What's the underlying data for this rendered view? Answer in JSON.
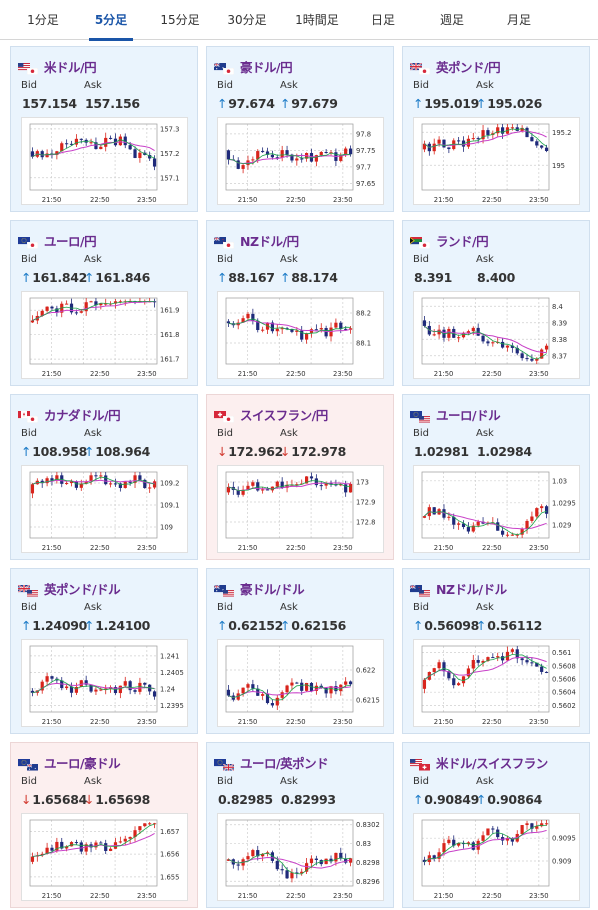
{
  "tabs": [
    {
      "label": "1分足",
      "active": false
    },
    {
      "label": "5分足",
      "active": true
    },
    {
      "label": "15分足",
      "active": false
    },
    {
      "label": "30分足",
      "active": false
    },
    {
      "label": "1時間足",
      "active": false
    },
    {
      "label": "日足",
      "active": false
    },
    {
      "label": "週足",
      "active": false
    },
    {
      "label": "月足",
      "active": false
    }
  ],
  "labels": {
    "bid": "Bid",
    "ask": "Ask"
  },
  "colors": {
    "up_bg": "#eaf4fd",
    "down_bg": "#fcefef",
    "name": "#6a2c8e",
    "up_arrow": "#1c7bc7",
    "down_arrow": "#d2392f",
    "candle_up": "#d8241c",
    "candle_down": "#1f2a7a",
    "ma_pink": "#c840c8",
    "ma_green": "#1aa34a"
  },
  "cards": [
    {
      "pair": "米ドル/円",
      "flag": "us-jp-flag-icon",
      "direction": "up",
      "bid": "157.154",
      "ask": "157.156",
      "arrow_bid": "",
      "arrow_ask": "",
      "chart_data": {
        "type": "line",
        "x_labels": [
          "21:50",
          "22:50",
          "23:50"
        ],
        "y_ticks": [
          "157.3",
          "157.2",
          "157.1"
        ],
        "ylim": [
          157.05,
          157.32
        ]
      }
    },
    {
      "pair": "豪ドル/円",
      "flag": "au-jp-flag-icon",
      "direction": "up",
      "bid": "97.674",
      "ask": "97.679",
      "arrow_bid": "↑",
      "arrow_ask": "↑",
      "chart_data": {
        "type": "line",
        "x_labels": [
          "21:50",
          "22:50",
          "23:50"
        ],
        "y_ticks": [
          "97.8",
          "97.75",
          "97.7",
          "97.65"
        ],
        "ylim": [
          97.63,
          97.83
        ]
      }
    },
    {
      "pair": "英ポンド/円",
      "flag": "gb-jp-flag-icon",
      "direction": "up",
      "bid": "195.019",
      "ask": "195.026",
      "arrow_bid": "↑",
      "arrow_ask": "↑",
      "chart_data": {
        "type": "line",
        "x_labels": [
          "21:50",
          "22:50",
          "23:50"
        ],
        "y_ticks": [
          "195.2",
          "195"
        ],
        "ylim": [
          194.85,
          195.25
        ]
      }
    },
    {
      "pair": "ユーロ/円",
      "flag": "eu-jp-flag-icon",
      "direction": "up",
      "bid": "161.842",
      "ask": "161.846",
      "arrow_bid": "↑",
      "arrow_ask": "↑",
      "chart_data": {
        "type": "line",
        "x_labels": [
          "21:50",
          "22:50",
          "23:50"
        ],
        "y_ticks": [
          "161.9",
          "161.8",
          "161.7"
        ],
        "ylim": [
          161.68,
          161.95
        ]
      }
    },
    {
      "pair": "NZドル/円",
      "flag": "nz-jp-flag-icon",
      "direction": "up",
      "bid": "88.167",
      "ask": "88.174",
      "arrow_bid": "↑",
      "arrow_ask": "↑",
      "chart_data": {
        "type": "line",
        "x_labels": [
          "21:50",
          "22:50",
          "23:50"
        ],
        "y_ticks": [
          "88.2",
          "88.1"
        ],
        "ylim": [
          88.03,
          88.25
        ]
      }
    },
    {
      "pair": "ランド/円",
      "flag": "za-jp-flag-icon",
      "direction": "up",
      "bid": "8.391",
      "ask": "8.400",
      "arrow_bid": "",
      "arrow_ask": "",
      "chart_data": {
        "type": "line",
        "x_labels": [
          "21:50",
          "22:50",
          "23:50"
        ],
        "y_ticks": [
          "8.4",
          "8.39",
          "8.38",
          "8.37"
        ],
        "ylim": [
          8.365,
          8.405
        ]
      }
    },
    {
      "pair": "カナダドル/円",
      "flag": "ca-jp-flag-icon",
      "direction": "up",
      "bid": "108.958",
      "ask": "108.964",
      "arrow_bid": "↑",
      "arrow_ask": "↑",
      "chart_data": {
        "type": "line",
        "x_labels": [
          "21:50",
          "22:50",
          "23:50"
        ],
        "y_ticks": [
          "109.2",
          "109.1",
          "109"
        ],
        "ylim": [
          108.95,
          109.25
        ]
      }
    },
    {
      "pair": "スイスフラン/円",
      "flag": "ch-jp-flag-icon",
      "direction": "down",
      "bid": "172.962",
      "ask": "172.978",
      "arrow_bid": "↓",
      "arrow_ask": "↓",
      "chart_data": {
        "type": "line",
        "x_labels": [
          "21:50",
          "22:50",
          "23:50"
        ],
        "y_ticks": [
          "173",
          "172.9",
          "172.8"
        ],
        "ylim": [
          172.72,
          173.05
        ]
      }
    },
    {
      "pair": "ユーロ/ドル",
      "flag": "eu-us-flag-icon",
      "direction": "up",
      "bid": "1.02981",
      "ask": "1.02984",
      "arrow_bid": "",
      "arrow_ask": "",
      "chart_data": {
        "type": "line",
        "x_labels": [
          "21:50",
          "22:50",
          "23:50"
        ],
        "y_ticks": [
          "1.03",
          "1.0295",
          "1.029"
        ],
        "ylim": [
          1.0287,
          1.0302
        ]
      }
    },
    {
      "pair": "英ポンド/ドル",
      "flag": "gb-us-flag-icon",
      "direction": "up",
      "bid": "1.24090",
      "ask": "1.24100",
      "arrow_bid": "↑",
      "arrow_ask": "↑",
      "chart_data": {
        "type": "line",
        "x_labels": [
          "21:50",
          "22:50",
          "23:50"
        ],
        "y_ticks": [
          "1.241",
          "1.2405",
          "1.24",
          "1.2395"
        ],
        "ylim": [
          1.2393,
          1.2413
        ]
      }
    },
    {
      "pair": "豪ドル/ドル",
      "flag": "au-us-flag-icon",
      "direction": "up",
      "bid": "0.62152",
      "ask": "0.62156",
      "arrow_bid": "↑",
      "arrow_ask": "↑",
      "chart_data": {
        "type": "line",
        "x_labels": [
          "21:50",
          "22:50",
          "23:50"
        ],
        "y_ticks": [
          "0.622",
          "0.6215"
        ],
        "ylim": [
          0.6213,
          0.6224
        ]
      }
    },
    {
      "pair": "NZドル/ドル",
      "flag": "nz-us-flag-icon",
      "direction": "up",
      "bid": "0.56098",
      "ask": "0.56112",
      "arrow_bid": "↑",
      "arrow_ask": "↑",
      "chart_data": {
        "type": "line",
        "x_labels": [
          "21:50",
          "22:50",
          "23:50"
        ],
        "y_ticks": [
          "0.561",
          "0.5608",
          "0.5606",
          "0.5604",
          "0.5602"
        ],
        "ylim": [
          0.5601,
          0.5611
        ]
      }
    },
    {
      "pair": "ユーロ/豪ドル",
      "flag": "eu-au-flag-icon",
      "direction": "down",
      "bid": "1.65684",
      "ask": "1.65698",
      "arrow_bid": "↓",
      "arrow_ask": "↓",
      "chart_data": {
        "type": "line",
        "x_labels": [
          "21:50",
          "22:50",
          "23:50"
        ],
        "y_ticks": [
          "1.657",
          "1.656",
          "1.655"
        ],
        "ylim": [
          1.6546,
          1.6575
        ]
      }
    },
    {
      "pair": "ユーロ/英ポンド",
      "flag": "eu-gb-flag-icon",
      "direction": "up",
      "bid": "0.82985",
      "ask": "0.82993",
      "arrow_bid": "",
      "arrow_ask": "",
      "chart_data": {
        "type": "line",
        "x_labels": [
          "21:50",
          "22:50",
          "23:50"
        ],
        "y_ticks": [
          "0.8302",
          "0.83",
          "0.8298",
          "0.8296"
        ],
        "ylim": [
          0.82955,
          0.83025
        ]
      }
    },
    {
      "pair": "米ドル/スイスフラン",
      "flag": "us-ch-flag-icon",
      "direction": "up",
      "bid": "0.90849",
      "ask": "0.90864",
      "arrow_bid": "↑",
      "arrow_ask": "↑",
      "chart_data": {
        "type": "line",
        "x_labels": [
          "21:50",
          "22:50",
          "23:50"
        ],
        "y_ticks": [
          "0.9095",
          "0.909"
        ],
        "ylim": [
          0.90845,
          0.9099
        ]
      }
    }
  ]
}
